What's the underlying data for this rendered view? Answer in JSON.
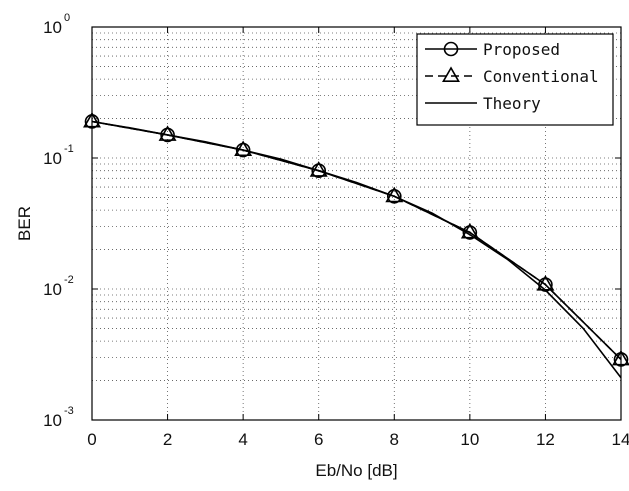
{
  "chart_data": {
    "type": "line",
    "xlabel": "Eb/No [dB]",
    "ylabel": "BER",
    "x_scale": "linear",
    "y_scale": "log",
    "xlim": [
      0,
      14
    ],
    "ylim": [
      0.001,
      1
    ],
    "grid": true,
    "legend_position": "top-right",
    "x_ticks": [
      0,
      2,
      4,
      6,
      8,
      10,
      12,
      14
    ],
    "x_tick_labels": [
      "0",
      "2",
      "4",
      "6",
      "8",
      "10",
      "12",
      "14"
    ],
    "y_ticks": [
      {
        "value": 1,
        "base": "10",
        "exp": "0"
      },
      {
        "value": 0.1,
        "base": "10",
        "exp": "-1"
      },
      {
        "value": 0.01,
        "base": "10",
        "exp": "-2"
      },
      {
        "value": 0.001,
        "base": "10",
        "exp": "-3"
      }
    ],
    "series": [
      {
        "name": "Proposed",
        "marker": "circle",
        "line_style": "solid",
        "color": "#000000",
        "x": [
          0,
          2,
          4,
          6,
          8,
          10,
          12,
          14
        ],
        "y": [
          0.19,
          0.15,
          0.115,
          0.08,
          0.051,
          0.027,
          0.0108,
          0.0029
        ]
      },
      {
        "name": "Conventional",
        "marker": "triangle",
        "line_style": "dashed",
        "color": "#000000",
        "x": [
          0,
          2,
          4,
          6,
          8,
          10,
          12,
          14
        ],
        "y": [
          0.19,
          0.15,
          0.115,
          0.08,
          0.051,
          0.027,
          0.0108,
          0.0029
        ]
      },
      {
        "name": "Theory",
        "marker": "none",
        "line_style": "solid",
        "color": "#000000",
        "x": [
          0,
          1,
          2,
          3,
          4,
          5,
          6,
          7,
          8,
          9,
          10,
          11,
          12,
          13,
          14
        ],
        "y": [
          0.19,
          0.17,
          0.15,
          0.133,
          0.115,
          0.098,
          0.08,
          0.065,
          0.051,
          0.038,
          0.026,
          0.0168,
          0.0098,
          0.005,
          0.0021
        ]
      }
    ]
  }
}
